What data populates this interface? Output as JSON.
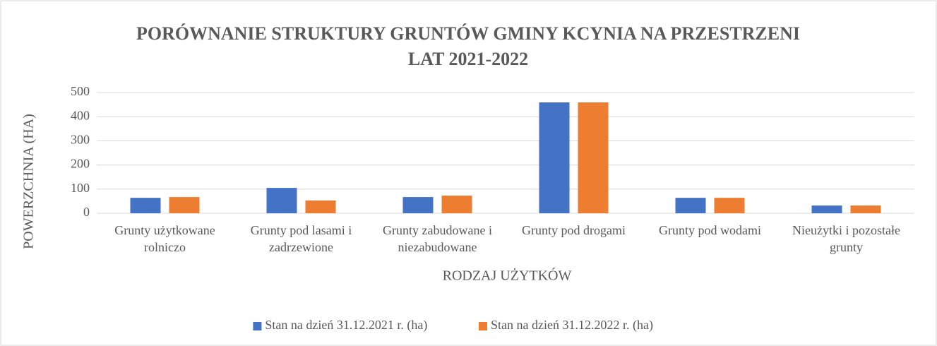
{
  "chart_data": {
    "type": "bar",
    "title": "PORÓWNANIE STRUKTURY GRUNTÓW GMINY KCYNIA NA PRZESTRZENI LAT 2021-2022",
    "x_label": "RODZAJ UŻYTKÓW",
    "y_label": "POWERZCHNIA (HA)",
    "categories": [
      "Grunty użytkowane rolniczo",
      "Grunty pod lasami i zadrzewione",
      "Grunty zabudowane i niezabudowane",
      "Grunty pod drogami",
      "Grunty pod wodami",
      "Nieużytki i pozostałe grunty"
    ],
    "series": [
      {
        "name": "Stan na dzień 31.12.2021 r. (ha)",
        "color": "#4472c4",
        "values": [
          64,
          105,
          67,
          459,
          64,
          32
        ]
      },
      {
        "name": "Stan na dzień 31.12.2022 r. (ha)",
        "color": "#ed7d31",
        "values": [
          67,
          53,
          73,
          459,
          64,
          32
        ]
      }
    ],
    "ylim": [
      0,
      500
    ],
    "yticks": [
      0,
      100,
      200,
      300,
      400,
      500
    ],
    "grid": true,
    "legend": "bottom"
  }
}
